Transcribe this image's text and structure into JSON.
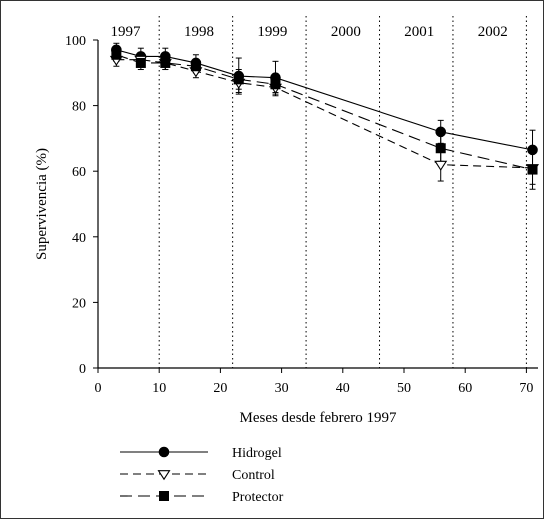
{
  "chart_data": {
    "type": "line",
    "title": "",
    "xlabel": "Meses desde febrero 1997",
    "ylabel": "Supervivencia (%)",
    "xlim": [
      0,
      72
    ],
    "ylim": [
      0,
      100
    ],
    "x_ticks": [
      "0",
      "10",
      "20",
      "30",
      "40",
      "50",
      "60",
      "70"
    ],
    "y_ticks": [
      "0",
      "20",
      "40",
      "60",
      "80",
      "100"
    ],
    "year_labels": [
      {
        "label": "1997",
        "x": 4.5
      },
      {
        "label": "1998",
        "x": 16.5
      },
      {
        "label": "1999",
        "x": 28.5
      },
      {
        "label": "2000",
        "x": 40.5
      },
      {
        "label": "2001",
        "x": 52.5
      },
      {
        "label": "2002",
        "x": 64.5
      }
    ],
    "year_dividers": [
      10,
      22,
      34,
      46,
      58,
      70
    ],
    "grid": false,
    "legend_position": "bottom-left",
    "series": [
      {
        "name": "Hidrogel",
        "marker": "circle",
        "line_style": "solid",
        "x": [
          3,
          7,
          11,
          16,
          23,
          29,
          56,
          71
        ],
        "y": [
          97,
          95,
          95,
          93,
          89,
          88.5,
          72,
          66.5
        ],
        "err": [
          2,
          2.5,
          2.5,
          2.5,
          5.5,
          5,
          3.5,
          6
        ]
      },
      {
        "name": "Control",
        "marker": "triangle-down-open",
        "line_style": "dashed",
        "x": [
          3,
          7,
          11,
          16,
          23,
          29,
          56,
          71
        ],
        "y": [
          94,
          94,
          93,
          90.5,
          87,
          85.5,
          62,
          61
        ],
        "err": [
          2,
          2,
          2,
          2,
          3,
          2.5,
          5,
          5
        ]
      },
      {
        "name": "Protector",
        "marker": "square",
        "line_style": "longdash",
        "x": [
          3,
          7,
          11,
          16,
          23,
          29,
          56,
          71
        ],
        "y": [
          95.5,
          93,
          93,
          92,
          88,
          86.5,
          67,
          60.5
        ],
        "err": [
          2,
          2,
          2,
          2,
          3,
          2.5,
          4,
          6
        ]
      }
    ]
  }
}
